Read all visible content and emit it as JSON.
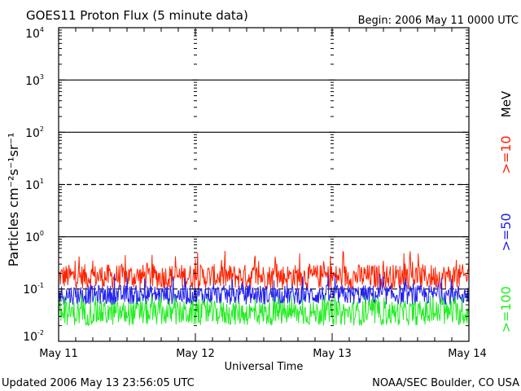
{
  "header": {
    "title": "GOES11 Proton Flux (5 minute data)",
    "begin": "Begin: 2006 May 11 0000 UTC"
  },
  "footer": {
    "updated": "Updated 2006 May 13 23:56:05 UTC",
    "credit": "NOAA/SEC Boulder, CO USA"
  },
  "chart_data": {
    "type": "line",
    "title": "GOES11 Proton Flux (5 minute data)",
    "xlabel": "Universal Time",
    "ylabel": "Particles cm⁻²s⁻¹sr⁻¹",
    "y_scale": "log",
    "ylim": [
      0.01,
      10000
    ],
    "y_ticks": [
      {
        "base": "10",
        "exp": "-2"
      },
      {
        "base": "10",
        "exp": "-1"
      },
      {
        "base": "10",
        "exp": "0"
      },
      {
        "base": "10",
        "exp": "1"
      },
      {
        "base": "10",
        "exp": "2"
      },
      {
        "base": "10",
        "exp": "3"
      },
      {
        "base": "10",
        "exp": "4"
      }
    ],
    "x_ticks": [
      "May 11",
      "May 12",
      "May 13",
      "May 14"
    ],
    "xlim": [
      "2006-05-11T00:00",
      "2006-05-14T00:00"
    ],
    "energy_unit": "MeV",
    "grid": {
      "solid_decades": [
        0,
        2,
        3
      ],
      "dashed_decades": [
        -1,
        1
      ]
    },
    "series": [
      {
        "name": ">=10",
        "color": "#ff2200",
        "typical_min": 0.1,
        "typical_max": 0.3,
        "peak_max": 0.55
      },
      {
        "name": ">=50",
        "color": "#2222ee",
        "typical_min": 0.05,
        "typical_max": 0.12,
        "peak_max": 0.2
      },
      {
        "name": ">=100",
        "color": "#22ee22",
        "typical_min": 0.02,
        "typical_max": 0.06,
        "peak_max": 0.08
      }
    ]
  }
}
